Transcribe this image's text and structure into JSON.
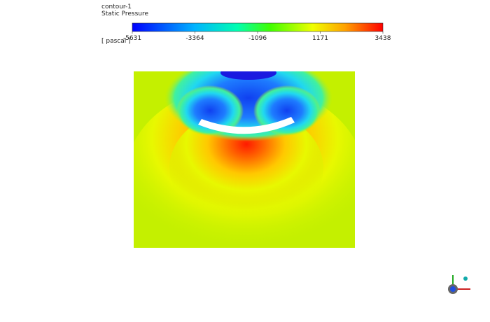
{
  "legend": {
    "name": "contour-1",
    "variable": "Static Pressure",
    "unit": "[ pascal ]",
    "ticks": [
      -5631,
      -3364,
      -1096,
      1171,
      3438
    ]
  }
}
